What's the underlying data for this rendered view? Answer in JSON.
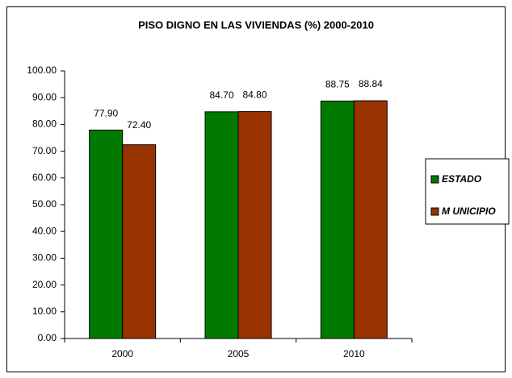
{
  "chart_data": {
    "type": "bar",
    "title": "PISO DIGNO EN LAS VIVIENDAS (%) 2000-2010",
    "categories": [
      "2000",
      "2005",
      "2010"
    ],
    "series": [
      {
        "name": "ESTADO",
        "color": "#007a00",
        "values": [
          77.9,
          84.7,
          88.75
        ],
        "value_labels": [
          "77.90",
          "84.70",
          "88.75"
        ]
      },
      {
        "name": "M UNICIPIO",
        "color": "#993300",
        "values": [
          72.4,
          84.8,
          88.84
        ],
        "value_labels": [
          "72.40",
          "84.80",
          "88.84"
        ]
      }
    ],
    "ylim": [
      0,
      100
    ],
    "yticks": [
      {
        "value": 0,
        "label": "0.00"
      },
      {
        "value": 10,
        "label": "10.00"
      },
      {
        "value": 20,
        "label": "20.00"
      },
      {
        "value": 30,
        "label": "30.00"
      },
      {
        "value": 40,
        "label": "40.00"
      },
      {
        "value": 50,
        "label": "50.00"
      },
      {
        "value": 60,
        "label": "60.00"
      },
      {
        "value": 70,
        "label": "70.00"
      },
      {
        "value": 80,
        "label": "80.00"
      },
      {
        "value": 90,
        "label": "90.00"
      },
      {
        "value": 100,
        "label": "100.00"
      }
    ],
    "grid": false,
    "legend": "right"
  }
}
